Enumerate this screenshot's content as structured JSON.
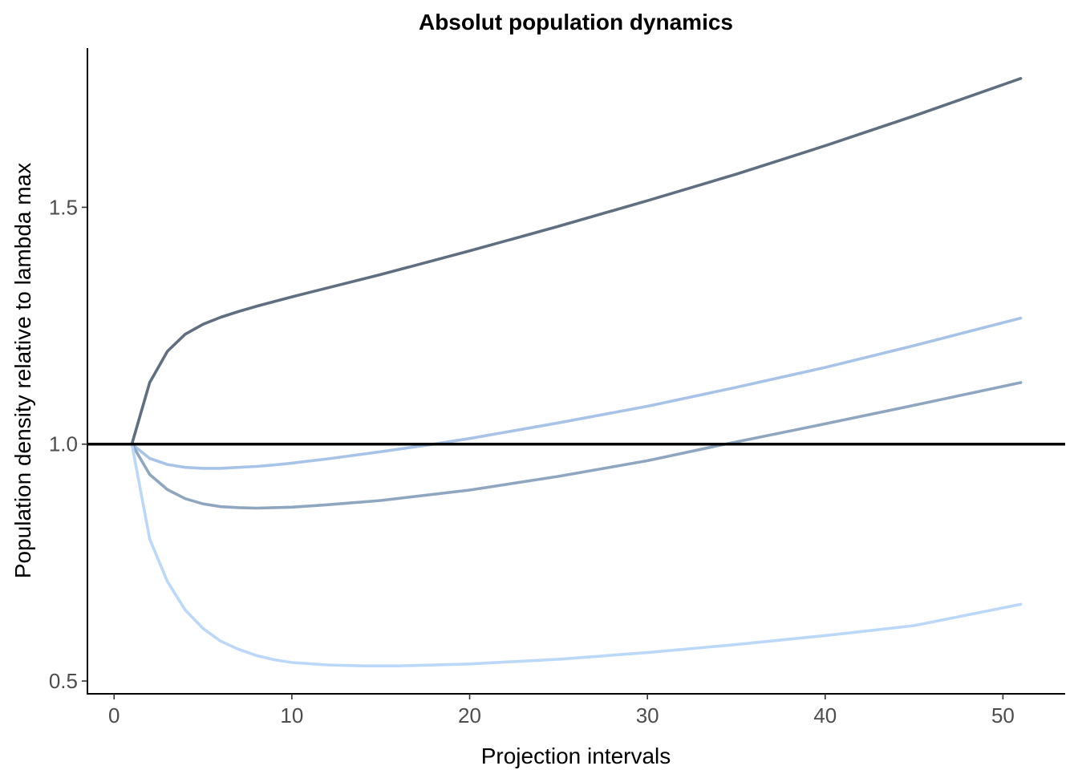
{
  "chart_data": {
    "type": "line",
    "title": "Absolut population dynamics",
    "xlabel": "Projection intervals",
    "ylabel": "Population density relative to lambda max",
    "xlim": [
      -1.5,
      53.5
    ],
    "ylim": [
      0.473,
      1.836
    ],
    "x_ticks": [
      0,
      10,
      20,
      30,
      40,
      50
    ],
    "y_ticks": [
      0.5,
      1.0,
      1.5
    ],
    "x_tick_labels": [
      "0",
      "10",
      "20",
      "30",
      "40",
      "50"
    ],
    "y_tick_labels": [
      "0.5",
      "1.0",
      "1.5"
    ],
    "grid": false,
    "legend": "none",
    "reference_line": {
      "y": 1.0,
      "color": "#000000"
    },
    "series": [
      {
        "color": "#5f6e80",
        "x": [
          1,
          2,
          3,
          4,
          5,
          6,
          7,
          8,
          9,
          10,
          15,
          20,
          25,
          30,
          35,
          40,
          45,
          51
        ],
        "y": [
          1.0,
          1.13,
          1.196,
          1.232,
          1.253,
          1.268,
          1.28,
          1.291,
          1.301,
          1.311,
          1.358,
          1.408,
          1.46,
          1.514,
          1.57,
          1.63,
          1.693,
          1.772
        ]
      },
      {
        "color": "#a7c4e8",
        "x": [
          1,
          2,
          3,
          4,
          5,
          6,
          7,
          8,
          9,
          10,
          12,
          15,
          18,
          20,
          25,
          30,
          35,
          40,
          45,
          51
        ],
        "y": [
          1.0,
          0.97,
          0.957,
          0.951,
          0.949,
          0.949,
          0.951,
          0.953,
          0.956,
          0.96,
          0.969,
          0.984,
          1.0,
          1.012,
          1.045,
          1.08,
          1.12,
          1.162,
          1.208,
          1.266
        ]
      },
      {
        "color": "#8ea6c0",
        "x": [
          1,
          2,
          3,
          4,
          5,
          6,
          7,
          8,
          9,
          10,
          12,
          15,
          20,
          25,
          30,
          34,
          40,
          45,
          51
        ],
        "y": [
          1.0,
          0.936,
          0.904,
          0.885,
          0.874,
          0.868,
          0.866,
          0.865,
          0.866,
          0.867,
          0.872,
          0.881,
          0.903,
          0.932,
          0.965,
          0.997,
          1.043,
          1.082,
          1.13
        ]
      },
      {
        "color": "#bcd8f8",
        "x": [
          1,
          2,
          3,
          4,
          5,
          6,
          7,
          8,
          9,
          10,
          12,
          14,
          16,
          20,
          25,
          30,
          35,
          40,
          45,
          51
        ],
        "y": [
          1.0,
          0.8,
          0.71,
          0.65,
          0.611,
          0.584,
          0.567,
          0.554,
          0.545,
          0.539,
          0.534,
          0.532,
          0.532,
          0.536,
          0.546,
          0.56,
          0.577,
          0.596,
          0.617,
          0.662
        ]
      }
    ]
  }
}
